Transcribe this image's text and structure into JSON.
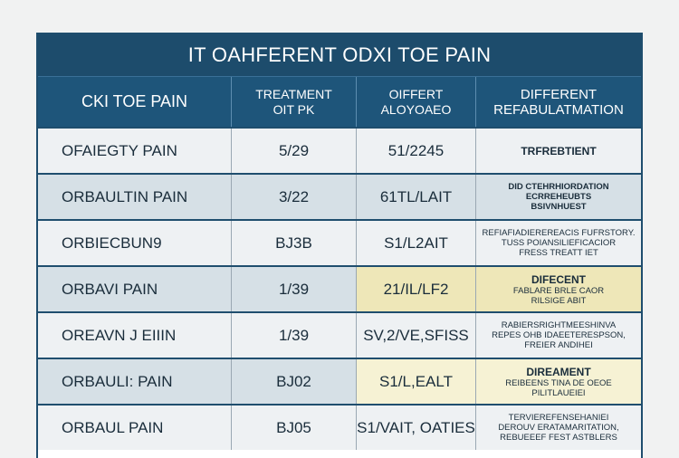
{
  "table": {
    "title": "IT OAHFERENT ODXI TOE PAIN",
    "headers": {
      "col1": "CKI TOE PAIN",
      "col2": [
        "TREATMENT",
        "OIT PK"
      ],
      "col3": [
        "OIFFERT",
        "ALOYOAEO"
      ],
      "col4": [
        "DIFFERENT",
        "REFABULATMATION"
      ]
    },
    "rows": [
      {
        "name": "OFAIEGTY PAIN",
        "treatment": "5/29",
        "other": "51/2245",
        "notes": [
          "TRFREBTIENT"
        ],
        "notes_style": "big-bold",
        "style": "light",
        "c3_highlight": "",
        "c4_highlight": ""
      },
      {
        "name": "ORBAULTIN PAIN",
        "treatment": "3/22",
        "other": "61TL/LAIT",
        "notes": [
          "DID CTEHRHIORDATION",
          "ECRREHEUBTS",
          "BSIVNHUEST"
        ],
        "notes_style": "bold",
        "style": "shade",
        "c3_highlight": "",
        "c4_highlight": ""
      },
      {
        "name": "ORBIECBUN9",
        "treatment": "BJ3B",
        "other": "S1/L2AIT",
        "notes": [
          "REFIAFIADIEREREACIS FUFRSTORY.",
          "TUSS POIANSILIEFICACIOR",
          "FRESS TREATT IET"
        ],
        "notes_style": "",
        "style": "light",
        "c3_highlight": "",
        "c4_highlight": ""
      },
      {
        "name": "ORBAVI PAIN",
        "treatment": "1/39",
        "other": "21/IL/LF2",
        "notes": [
          "DIFECENT",
          "FABLARE BRLE CAOR",
          "RILSIGE ABIT"
        ],
        "notes_style": "mixed",
        "style": "shade",
        "c3_highlight": "yellow",
        "c4_highlight": "yellow"
      },
      {
        "name": "OREAVN J EIIIN",
        "treatment": "1/39",
        "other": "SV,2/VE,SFISS",
        "notes": [
          "RABIERSRIGHTMEESHINVA",
          "REPES OHB IDAEETERESPSON,",
          "FREIER ANDIHEI"
        ],
        "notes_style": "",
        "style": "light",
        "c3_highlight": "",
        "c4_highlight": ""
      },
      {
        "name": "ORBAULI: PAIN",
        "treatment": "BJ02",
        "other": "S1/L,EALT",
        "notes": [
          "DIREAMENT",
          "REIBEENS TINA DE OEOE",
          "PILITLAUEIEI"
        ],
        "notes_style": "mixed",
        "style": "shade",
        "c3_highlight": "lightyellow",
        "c4_highlight": "lightyellow"
      },
      {
        "name": "ORBAUL PAIN",
        "treatment": "BJ05",
        "other": "S1/VAIT, OATIES",
        "notes": [
          "TERVIEREFENSEHANIEI",
          "DEROUV ERATAMARITATION,",
          "REBUEEEF FEST ASTBLERS"
        ],
        "notes_style": "",
        "style": "light",
        "c3_highlight": "",
        "c4_highlight": ""
      }
    ]
  }
}
